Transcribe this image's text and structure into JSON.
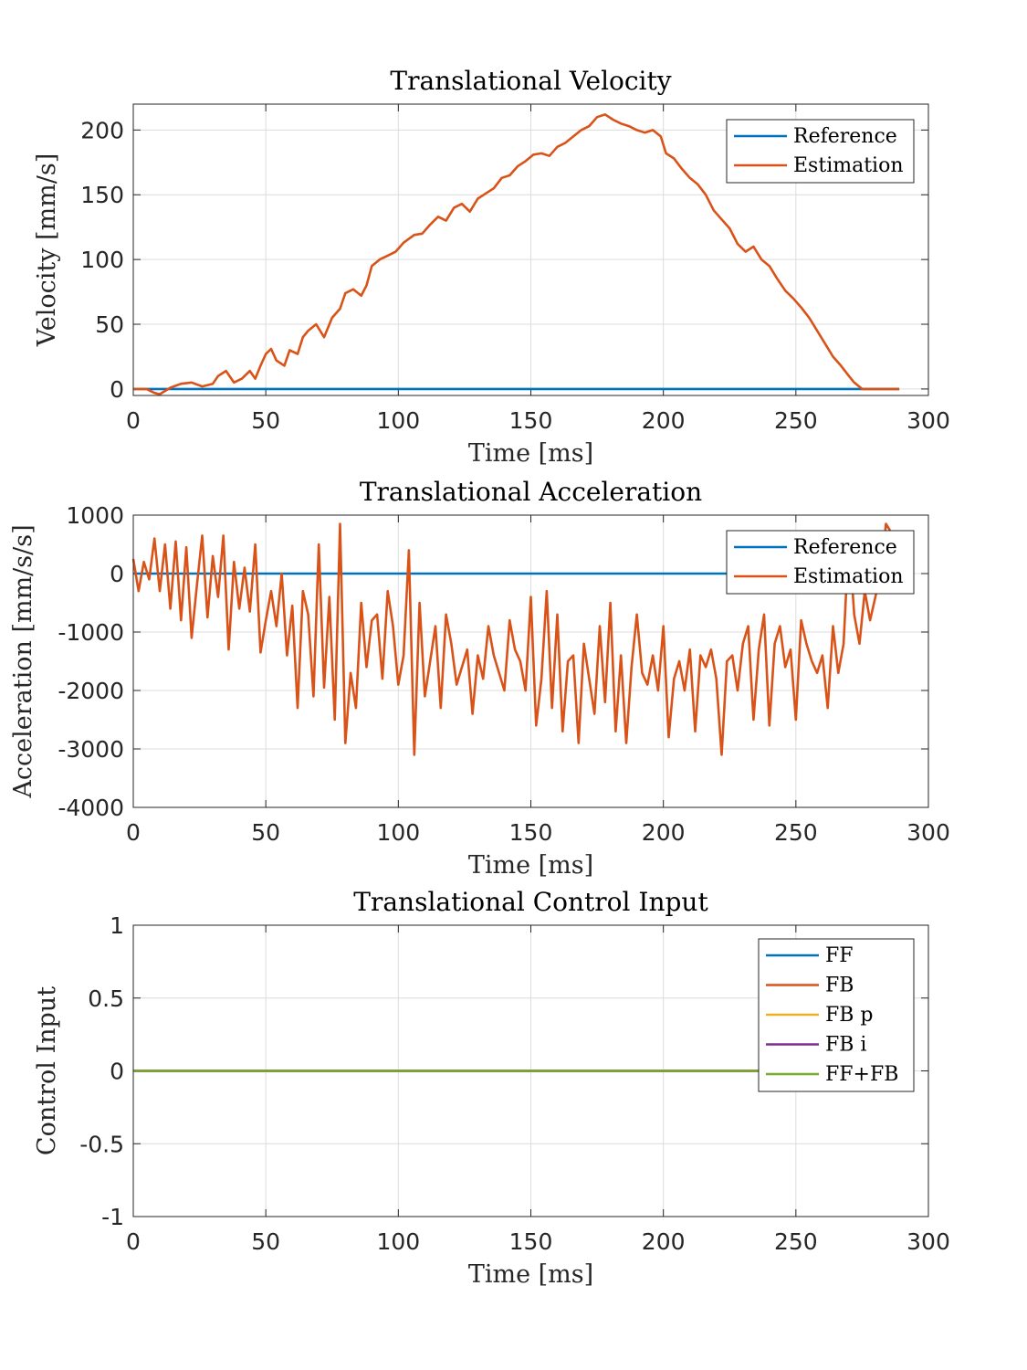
{
  "chart_data": [
    {
      "type": "line",
      "title": "Translational Velocity",
      "xlabel": "Time [ms]",
      "ylabel": "Velocity [mm/s]",
      "xlim": [
        0,
        300
      ],
      "ylim": [
        -5,
        220
      ],
      "xticks": [
        0,
        50,
        100,
        150,
        200,
        250,
        300
      ],
      "yticks": [
        0,
        50,
        100,
        150,
        200
      ],
      "grid": true,
      "legend_position": "top-right",
      "series": [
        {
          "name": "Reference",
          "color": "#0072BD",
          "x": [
            0,
            289
          ],
          "y": [
            0,
            0
          ]
        },
        {
          "name": "Estimation",
          "color": "#D95319",
          "x": [
            0,
            5,
            8,
            10,
            14,
            18,
            22,
            26,
            30,
            32,
            35,
            38,
            41,
            44,
            46,
            48,
            50,
            52,
            54,
            57,
            59,
            62,
            64,
            66,
            69,
            72,
            75,
            78,
            80,
            83,
            86,
            88,
            90,
            93,
            96,
            99,
            102,
            106,
            109,
            112,
            115,
            118,
            121,
            124,
            127,
            130,
            133,
            136,
            139,
            142,
            145,
            148,
            151,
            154,
            157,
            160,
            163,
            166,
            169,
            172,
            175,
            178,
            181,
            184,
            187,
            190,
            193,
            196,
            199,
            201,
            204,
            207,
            210,
            213,
            216,
            219,
            222,
            225,
            228,
            231,
            234,
            237,
            240,
            243,
            246,
            249,
            252,
            255,
            258,
            261,
            264,
            267,
            270,
            272,
            275,
            279,
            283,
            289
          ],
          "y": [
            0,
            0,
            -3,
            -4,
            1,
            4,
            5,
            2,
            4,
            10,
            14,
            5,
            8,
            14,
            8,
            18,
            27,
            31,
            22,
            18,
            30,
            27,
            40,
            45,
            50,
            40,
            55,
            62,
            74,
            77,
            72,
            80,
            95,
            100,
            103,
            106,
            113,
            119,
            120,
            127,
            133,
            130,
            140,
            143,
            137,
            147,
            151,
            155,
            163,
            165,
            172,
            176,
            181,
            182,
            180,
            187,
            190,
            195,
            200,
            203,
            210,
            212,
            208,
            205,
            203,
            200,
            198,
            200,
            195,
            182,
            178,
            170,
            163,
            158,
            150,
            138,
            131,
            124,
            112,
            106,
            110,
            100,
            95,
            85,
            76,
            70,
            63,
            55,
            45,
            35,
            25,
            18,
            10,
            5,
            0,
            0,
            0,
            0
          ]
        }
      ]
    },
    {
      "type": "line",
      "title": "Translational Acceleration",
      "xlabel": "Time [ms]",
      "ylabel": "Acceleration [mm/s/s]",
      "xlim": [
        0,
        300
      ],
      "ylim": [
        -4000,
        1000
      ],
      "xticks": [
        0,
        50,
        100,
        150,
        200,
        250,
        300
      ],
      "yticks": [
        -4000,
        -3000,
        -2000,
        -1000,
        0,
        1000
      ],
      "grid": true,
      "legend_position": "top-right",
      "series": [
        {
          "name": "Reference",
          "color": "#0072BD",
          "x": [
            0,
            289
          ],
          "y": [
            0,
            0
          ]
        },
        {
          "name": "Estimation",
          "color": "#D95319",
          "x": [
            0,
            2,
            4,
            6,
            8,
            10,
            12,
            14,
            16,
            18,
            20,
            22,
            24,
            26,
            28,
            30,
            32,
            34,
            36,
            38,
            40,
            42,
            44,
            46,
            48,
            50,
            52,
            54,
            56,
            58,
            60,
            62,
            64,
            66,
            68,
            70,
            72,
            74,
            76,
            78,
            80,
            82,
            84,
            86,
            88,
            90,
            92,
            94,
            96,
            98,
            100,
            102,
            104,
            106,
            108,
            110,
            112,
            114,
            116,
            118,
            120,
            122,
            124,
            126,
            128,
            130,
            132,
            134,
            136,
            138,
            140,
            142,
            144,
            146,
            148,
            150,
            152,
            154,
            156,
            158,
            160,
            162,
            164,
            166,
            168,
            170,
            172,
            174,
            176,
            178,
            180,
            182,
            184,
            186,
            188,
            190,
            192,
            194,
            196,
            198,
            200,
            202,
            204,
            206,
            208,
            210,
            212,
            214,
            216,
            218,
            220,
            222,
            224,
            226,
            228,
            230,
            232,
            234,
            236,
            238,
            240,
            242,
            244,
            246,
            248,
            250,
            252,
            254,
            256,
            258,
            260,
            262,
            264,
            266,
            268,
            270,
            272,
            274,
            276,
            278,
            280,
            282,
            284,
            286,
            288
          ],
          "y": [
            250,
            -300,
            200,
            -100,
            600,
            -300,
            500,
            -600,
            550,
            -800,
            450,
            -1100,
            -200,
            650,
            -750,
            300,
            -400,
            650,
            -1300,
            200,
            -600,
            100,
            -650,
            500,
            -1350,
            -800,
            -300,
            -900,
            0,
            -1400,
            -550,
            -2300,
            -300,
            -700,
            -2100,
            500,
            -1950,
            -400,
            -2500,
            850,
            -2900,
            -1700,
            -2300,
            -500,
            -1600,
            -800,
            -700,
            -1800,
            -300,
            -900,
            -1900,
            -1400,
            400,
            -3100,
            -500,
            -2100,
            -1500,
            -900,
            -2300,
            -700,
            -1200,
            -1900,
            -1600,
            -1300,
            -2400,
            -1400,
            -1800,
            -900,
            -1400,
            -1700,
            -2000,
            -800,
            -1300,
            -1500,
            -2000,
            -400,
            -2600,
            -1800,
            -300,
            -2300,
            -700,
            -2700,
            -1500,
            -1400,
            -2900,
            -1200,
            -1800,
            -2400,
            -900,
            -2200,
            -500,
            -2700,
            -1400,
            -2900,
            -1600,
            -700,
            -1700,
            -1900,
            -1400,
            -2000,
            -900,
            -2800,
            -1800,
            -1500,
            -2000,
            -1300,
            -2700,
            -1400,
            -1600,
            -1300,
            -1800,
            -3100,
            -1500,
            -1400,
            -2000,
            -1200,
            -900,
            -2500,
            -1300,
            -700,
            -2600,
            -1200,
            -900,
            -1600,
            -1300,
            -2500,
            -800,
            -1200,
            -1500,
            -1700,
            -1400,
            -2300,
            -900,
            -1700,
            -1200,
            650,
            -700,
            -1200,
            -300,
            -800,
            -400,
            0,
            850,
            700,
            0
          ]
        }
      ]
    },
    {
      "type": "line",
      "title": "Translational Control Input",
      "xlabel": "Time [ms]",
      "ylabel": "Control Input",
      "xlim": [
        0,
        300
      ],
      "ylim": [
        -1,
        1
      ],
      "xticks": [
        0,
        50,
        100,
        150,
        200,
        250,
        300
      ],
      "yticks": [
        -1,
        -0.5,
        0,
        0.5,
        1
      ],
      "grid": true,
      "legend_position": "top-right",
      "series": [
        {
          "name": "FF",
          "color": "#0072BD",
          "x": [
            0,
            289
          ],
          "y": [
            0,
            0
          ]
        },
        {
          "name": "FB",
          "color": "#D95319",
          "x": [
            0,
            289
          ],
          "y": [
            0,
            0
          ]
        },
        {
          "name": "FB p",
          "color": "#EDB120",
          "x": [
            0,
            289
          ],
          "y": [
            0,
            0
          ]
        },
        {
          "name": "FB i",
          "color": "#7E2F8E",
          "x": [
            0,
            289
          ],
          "y": [
            0,
            0
          ]
        },
        {
          "name": "FF+FB",
          "color": "#77AC30",
          "x": [
            0,
            289
          ],
          "y": [
            0,
            0
          ]
        }
      ]
    }
  ]
}
